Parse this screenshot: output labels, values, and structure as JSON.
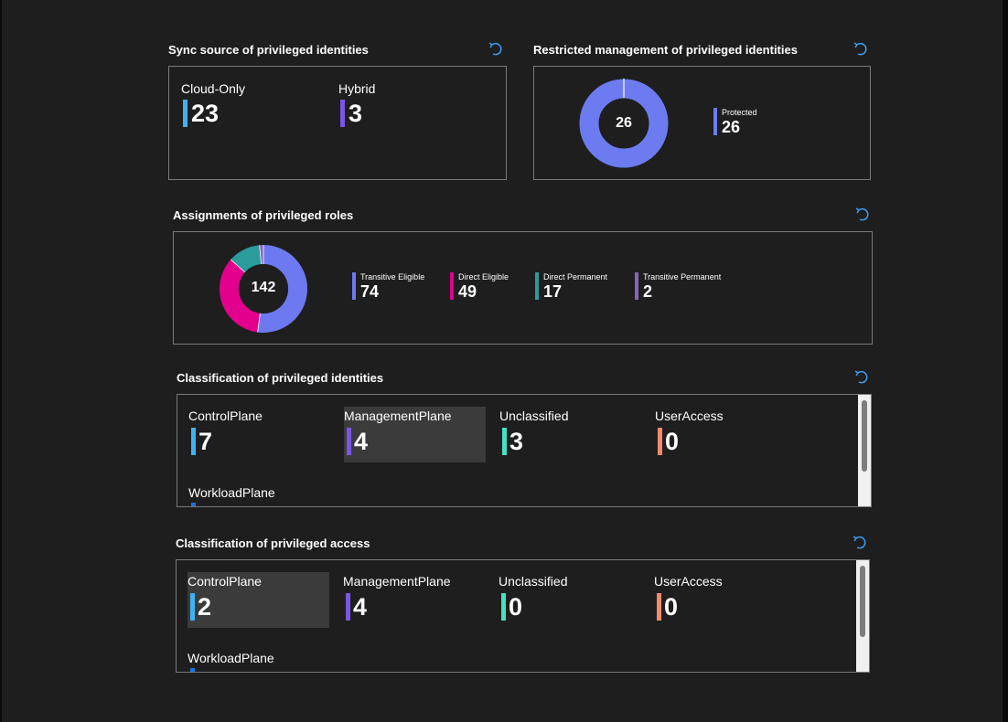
{
  "colors": {
    "cloud": "#3db3f0",
    "hybrid": "#7b55e8",
    "protected": "#6c7cf0",
    "transitive_eligible": "#6d79f0",
    "direct_eligible": "#e3008c",
    "direct_permanent": "#2b9b9b",
    "transitive_permanent": "#8764b8",
    "control": "#3db3f0",
    "management": "#7b55e8",
    "unclassified": "#46e0c4",
    "useraccess": "#f08b6e",
    "workload": "#1a73e8",
    "refresh": "#3b9bf0"
  },
  "sync": {
    "title": "Sync source of privileged identities",
    "refresh_icon": "refresh-icon",
    "items": [
      {
        "label": "Cloud-Only",
        "value": "23"
      },
      {
        "label": "Hybrid",
        "value": "3"
      }
    ]
  },
  "restricted": {
    "title": "Restricted management of privileged identities",
    "refresh_icon": "refresh-icon",
    "total": "26",
    "legend": [
      {
        "label": "Protected",
        "value": "26"
      }
    ]
  },
  "assignments": {
    "title": "Assignments of privileged roles",
    "refresh_icon": "refresh-icon",
    "total": "142",
    "legend": [
      {
        "label": "Transitive Eligible",
        "value": "74"
      },
      {
        "label": "Direct Eligible",
        "value": "49"
      },
      {
        "label": "Direct Permanent",
        "value": "17"
      },
      {
        "label": "Transitive Permanent",
        "value": "2"
      }
    ]
  },
  "class_identities": {
    "title": "Classification of privileged identities",
    "refresh_icon": "refresh-icon",
    "items": [
      {
        "label": "ControlPlane",
        "value": "7"
      },
      {
        "label": "ManagementPlane",
        "value": "4"
      },
      {
        "label": "Unclassified",
        "value": "3"
      },
      {
        "label": "UserAccess",
        "value": "0"
      },
      {
        "label": "WorkloadPlane",
        "value": ""
      }
    ]
  },
  "class_access": {
    "title": "Classification of privileged access",
    "refresh_icon": "refresh-icon",
    "items": [
      {
        "label": "ControlPlane",
        "value": "2"
      },
      {
        "label": "ManagementPlane",
        "value": "4"
      },
      {
        "label": "Unclassified",
        "value": "0"
      },
      {
        "label": "UserAccess",
        "value": "0"
      },
      {
        "label": "WorkloadPlane",
        "value": ""
      }
    ]
  }
}
